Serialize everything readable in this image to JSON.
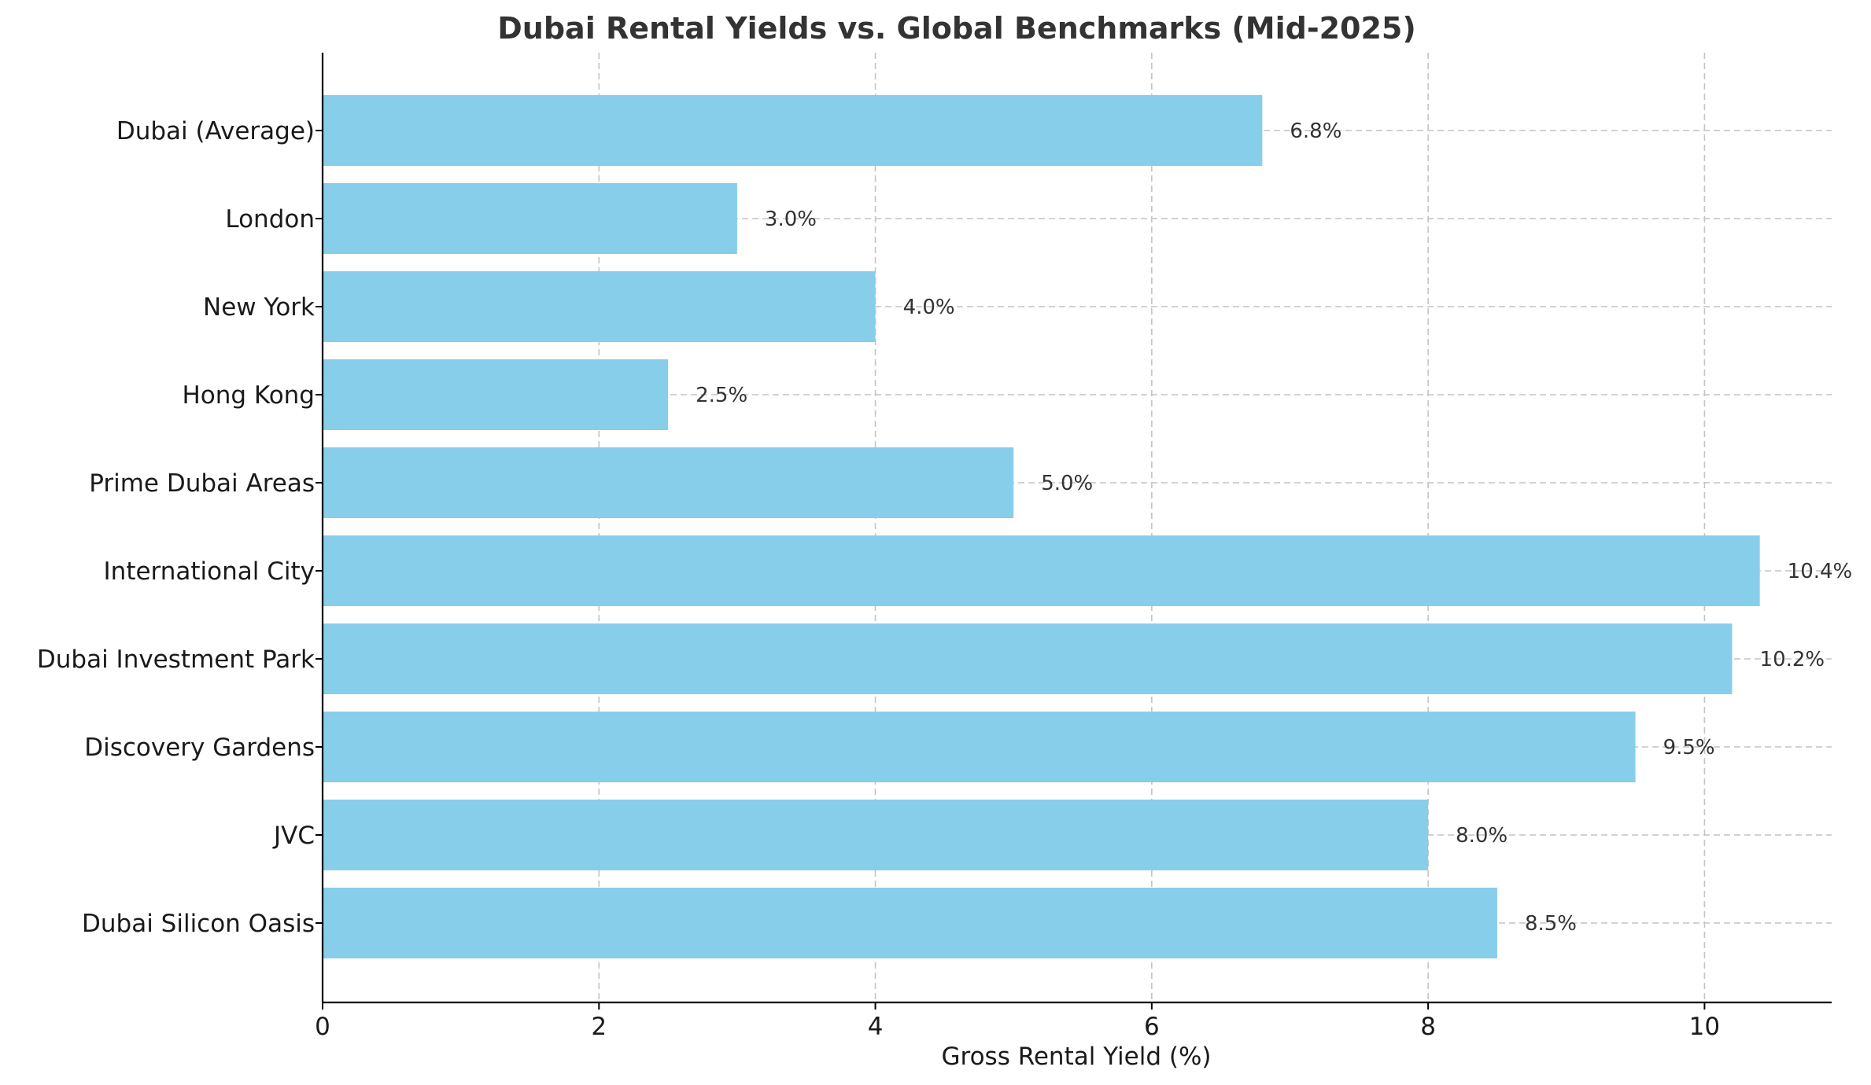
{
  "chart_data": {
    "type": "bar",
    "orientation": "horizontal",
    "title": "Dubai Rental Yields vs. Global Benchmarks (Mid-2025)",
    "xlabel": "Gross Rental Yield (%)",
    "ylabel": "",
    "categories": [
      "Dubai (Average)",
      "London",
      "New York",
      "Hong Kong",
      "Prime Dubai Areas",
      "International City",
      "Dubai Investment Park",
      "Discovery Gardens",
      "JVC",
      "Dubai Silicon Oasis"
    ],
    "values": [
      6.8,
      3.0,
      4.0,
      2.5,
      5.0,
      10.4,
      10.2,
      9.5,
      8.0,
      8.5
    ],
    "data_labels": [
      "6.8%",
      "3.0%",
      "4.0%",
      "2.5%",
      "5.0%",
      "10.4%",
      "10.2%",
      "9.5%",
      "8.0%",
      "8.5%"
    ],
    "xlim": [
      0,
      10.92
    ],
    "xticks": [
      0,
      2,
      4,
      6,
      8,
      10
    ],
    "grid": true,
    "bar_color": "#87ceeb"
  }
}
